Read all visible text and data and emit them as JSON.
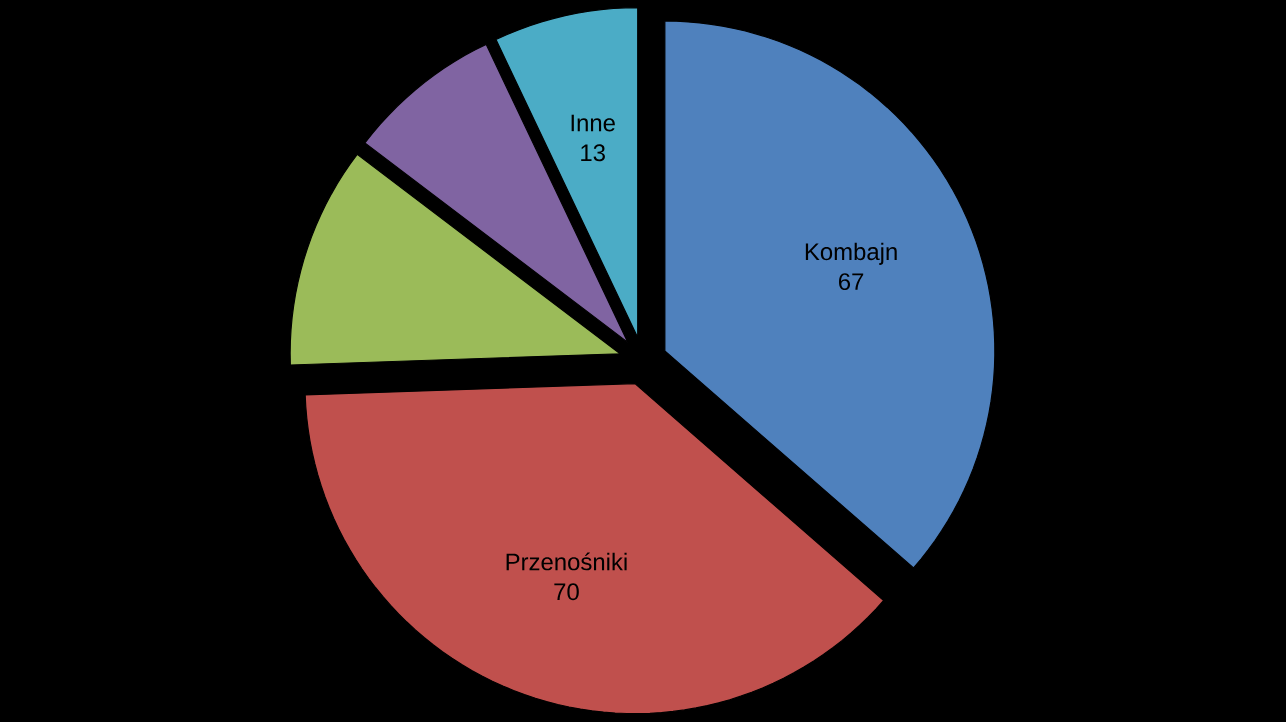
{
  "chart_data": {
    "type": "pie",
    "categories": [
      "Kombajn",
      "Przenośniki",
      null,
      null,
      "Inne"
    ],
    "values": [
      67,
      70,
      20,
      14,
      13
    ],
    "value_labels": [
      "67",
      "70",
      null,
      null,
      "13"
    ],
    "colors": [
      "#4f81bd",
      "#c0504d",
      "#9bbb59",
      "#8064a2",
      "#4bacc6"
    ]
  }
}
